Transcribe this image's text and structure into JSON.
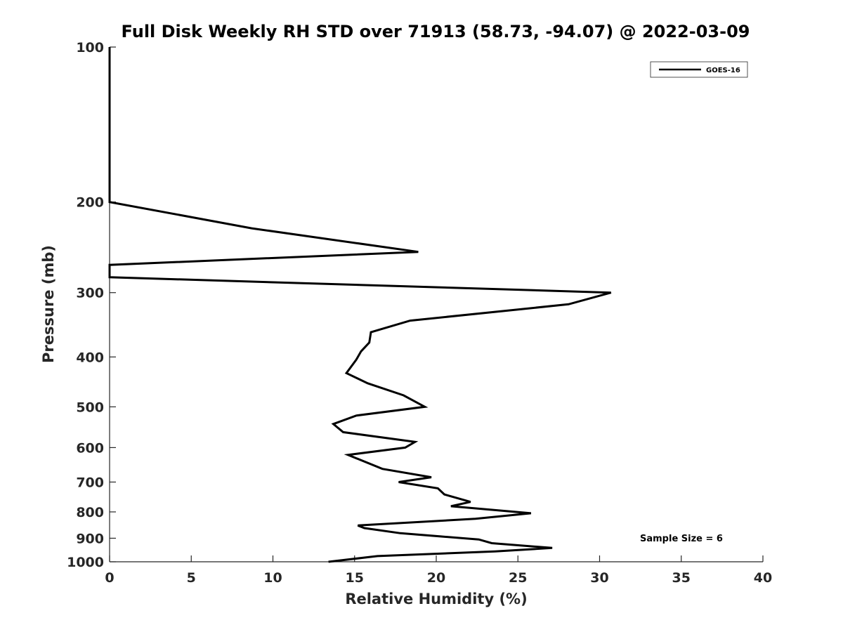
{
  "chart_data": {
    "type": "line",
    "title": "Full Disk Weekly RH STD over 71913 (58.73, -94.07) @ 2022-03-09",
    "xlabel": "Relative Humidity (%)",
    "ylabel": "Pressure (mb)",
    "xlim": [
      0,
      40
    ],
    "ylim": [
      100,
      1000
    ],
    "y_scale": "log",
    "y_reversed": true,
    "x_ticks": [
      0,
      5,
      10,
      15,
      20,
      25,
      30,
      35,
      40
    ],
    "y_ticks": [
      100,
      200,
      300,
      400,
      500,
      600,
      700,
      800,
      900,
      1000
    ],
    "grid": false,
    "legend_position": "top-right",
    "series": [
      {
        "name": "GOES-16",
        "color": "#000000",
        "points": [
          {
            "x": 0,
            "y": 100
          },
          {
            "x": 0,
            "y": 150
          },
          {
            "x": 0,
            "y": 200
          },
          {
            "x": 8.7,
            "y": 225
          },
          {
            "x": 18.9,
            "y": 250
          },
          {
            "x": 0,
            "y": 265
          },
          {
            "x": 0,
            "y": 280
          },
          {
            "x": 30.7,
            "y": 300
          },
          {
            "x": 28.1,
            "y": 316
          },
          {
            "x": 18.4,
            "y": 340
          },
          {
            "x": 16.0,
            "y": 358
          },
          {
            "x": 15.9,
            "y": 375
          },
          {
            "x": 15.4,
            "y": 390
          },
          {
            "x": 15.1,
            "y": 405
          },
          {
            "x": 14.5,
            "y": 430
          },
          {
            "x": 15.8,
            "y": 450
          },
          {
            "x": 18.0,
            "y": 475
          },
          {
            "x": 19.3,
            "y": 500
          },
          {
            "x": 15.1,
            "y": 520
          },
          {
            "x": 13.7,
            "y": 540
          },
          {
            "x": 14.3,
            "y": 560
          },
          {
            "x": 18.7,
            "y": 585
          },
          {
            "x": 18.1,
            "y": 600
          },
          {
            "x": 14.6,
            "y": 620
          },
          {
            "x": 16.7,
            "y": 660
          },
          {
            "x": 19.7,
            "y": 685
          },
          {
            "x": 17.7,
            "y": 700
          },
          {
            "x": 20.1,
            "y": 720
          },
          {
            "x": 20.5,
            "y": 740
          },
          {
            "x": 22.1,
            "y": 765
          },
          {
            "x": 20.9,
            "y": 780
          },
          {
            "x": 25.8,
            "y": 805
          },
          {
            "x": 22.4,
            "y": 825
          },
          {
            "x": 15.2,
            "y": 850
          },
          {
            "x": 15.6,
            "y": 860
          },
          {
            "x": 17.8,
            "y": 880
          },
          {
            "x": 22.6,
            "y": 905
          },
          {
            "x": 23.4,
            "y": 920
          },
          {
            "x": 27.1,
            "y": 940
          },
          {
            "x": 23.6,
            "y": 955
          },
          {
            "x": 16.4,
            "y": 975
          },
          {
            "x": 13.4,
            "y": 1000
          }
        ]
      }
    ],
    "annotations": [
      {
        "text": "Sample Size = 6"
      }
    ]
  }
}
